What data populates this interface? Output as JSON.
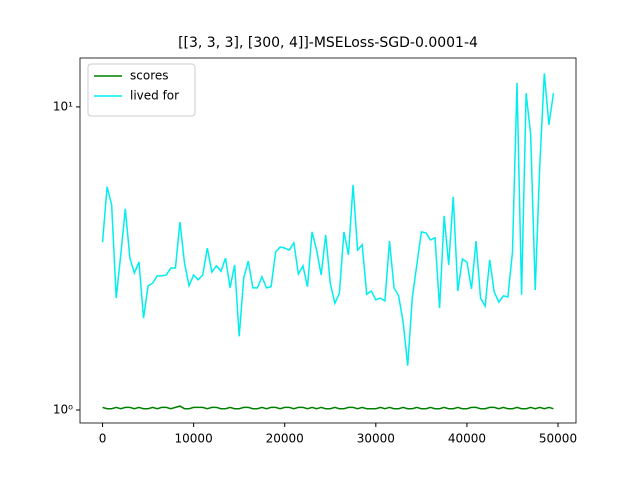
{
  "chart_data": {
    "type": "line",
    "title": "[[3, 3, 3], [300, 4]]-MSELoss-SGD-0.0001-4",
    "x": [
      0,
      500,
      1000,
      1500,
      2000,
      2500,
      3000,
      3500,
      4000,
      4500,
      5000,
      5500,
      6000,
      6500,
      7000,
      7500,
      8000,
      8500,
      9000,
      9500,
      10000,
      10500,
      11000,
      11500,
      12000,
      12500,
      13000,
      13500,
      14000,
      14500,
      15000,
      15500,
      16000,
      16500,
      17000,
      17500,
      18000,
      18500,
      19000,
      19500,
      20000,
      20500,
      21000,
      21500,
      22000,
      22500,
      23000,
      23500,
      24000,
      24500,
      25000,
      25500,
      26000,
      26500,
      27000,
      27500,
      28000,
      28500,
      29000,
      29500,
      30000,
      30500,
      31000,
      31500,
      32000,
      32500,
      33000,
      33500,
      34000,
      34500,
      35000,
      35500,
      36000,
      36500,
      37000,
      37500,
      38000,
      38500,
      39000,
      39500,
      40000,
      40500,
      41000,
      41500,
      42000,
      42500,
      43000,
      43500,
      44000,
      44500,
      45000,
      45500,
      46000,
      46500,
      47000,
      47500,
      48000,
      48500,
      49000,
      49500
    ],
    "series": [
      {
        "name": "scores",
        "color": "#008000",
        "values": [
          1.02,
          1.01,
          1.01,
          1.02,
          1.01,
          1.02,
          1.02,
          1.01,
          1.02,
          1.01,
          1.01,
          1.02,
          1.01,
          1.02,
          1.02,
          1.01,
          1.02,
          1.03,
          1.01,
          1.01,
          1.02,
          1.02,
          1.02,
          1.01,
          1.02,
          1.02,
          1.01,
          1.01,
          1.02,
          1.01,
          1.01,
          1.02,
          1.02,
          1.01,
          1.01,
          1.02,
          1.01,
          1.02,
          1.02,
          1.01,
          1.02,
          1.02,
          1.01,
          1.02,
          1.02,
          1.01,
          1.02,
          1.01,
          1.02,
          1.01,
          1.01,
          1.02,
          1.01,
          1.01,
          1.02,
          1.02,
          1.01,
          1.02,
          1.01,
          1.01,
          1.01,
          1.02,
          1.01,
          1.02,
          1.01,
          1.01,
          1.02,
          1.01,
          1.01,
          1.02,
          1.01,
          1.01,
          1.02,
          1.01,
          1.01,
          1.02,
          1.01,
          1.01,
          1.02,
          1.01,
          1.01,
          1.02,
          1.02,
          1.01,
          1.01,
          1.02,
          1.02,
          1.01,
          1.02,
          1.01,
          1.01,
          1.02,
          1.01,
          1.01,
          1.02,
          1.01,
          1.02,
          1.01,
          1.02,
          1.01
        ]
      },
      {
        "name": "lived for",
        "color": "#00eeee",
        "values": [
          3.58,
          5.45,
          4.75,
          2.34,
          3.25,
          4.61,
          3.17,
          2.83,
          3.08,
          2.01,
          2.57,
          2.62,
          2.77,
          2.77,
          2.79,
          2.94,
          2.94,
          4.17,
          3.05,
          2.57,
          2.79,
          2.69,
          2.79,
          3.42,
          2.85,
          2.99,
          2.87,
          3.17,
          2.53,
          3.01,
          1.75,
          2.73,
          3.1,
          2.53,
          2.53,
          2.75,
          2.53,
          2.55,
          3.32,
          3.45,
          3.42,
          3.37,
          3.56,
          2.81,
          2.99,
          2.55,
          3.87,
          3.37,
          2.79,
          3.78,
          2.62,
          2.25,
          2.43,
          3.87,
          3.25,
          5.53,
          3.37,
          3.51,
          2.41,
          2.47,
          2.31,
          2.34,
          2.29,
          3.61,
          2.53,
          2.38,
          1.95,
          1.4,
          2.34,
          3.01,
          3.87,
          3.84,
          3.64,
          3.7,
          2.17,
          4.37,
          3.01,
          5.05,
          2.47,
          3.15,
          3.08,
          2.51,
          3.61,
          2.34,
          2.2,
          3.13,
          2.45,
          2.27,
          2.38,
          2.36,
          3.32,
          12.0,
          2.4,
          11.1,
          8.09,
          2.49,
          6.44,
          12.9,
          8.73,
          11.1
        ]
      }
    ],
    "xlim": [
      -2475,
      51975
    ],
    "xticks": [
      0,
      10000,
      20000,
      30000,
      40000,
      50000
    ],
    "ylim": [
      0.906,
      14.5
    ],
    "yticks": [
      {
        "value": 1,
        "label": "10⁰"
      },
      {
        "value": 10,
        "label": "10¹"
      }
    ],
    "log_y": true,
    "legend": "upper left"
  }
}
